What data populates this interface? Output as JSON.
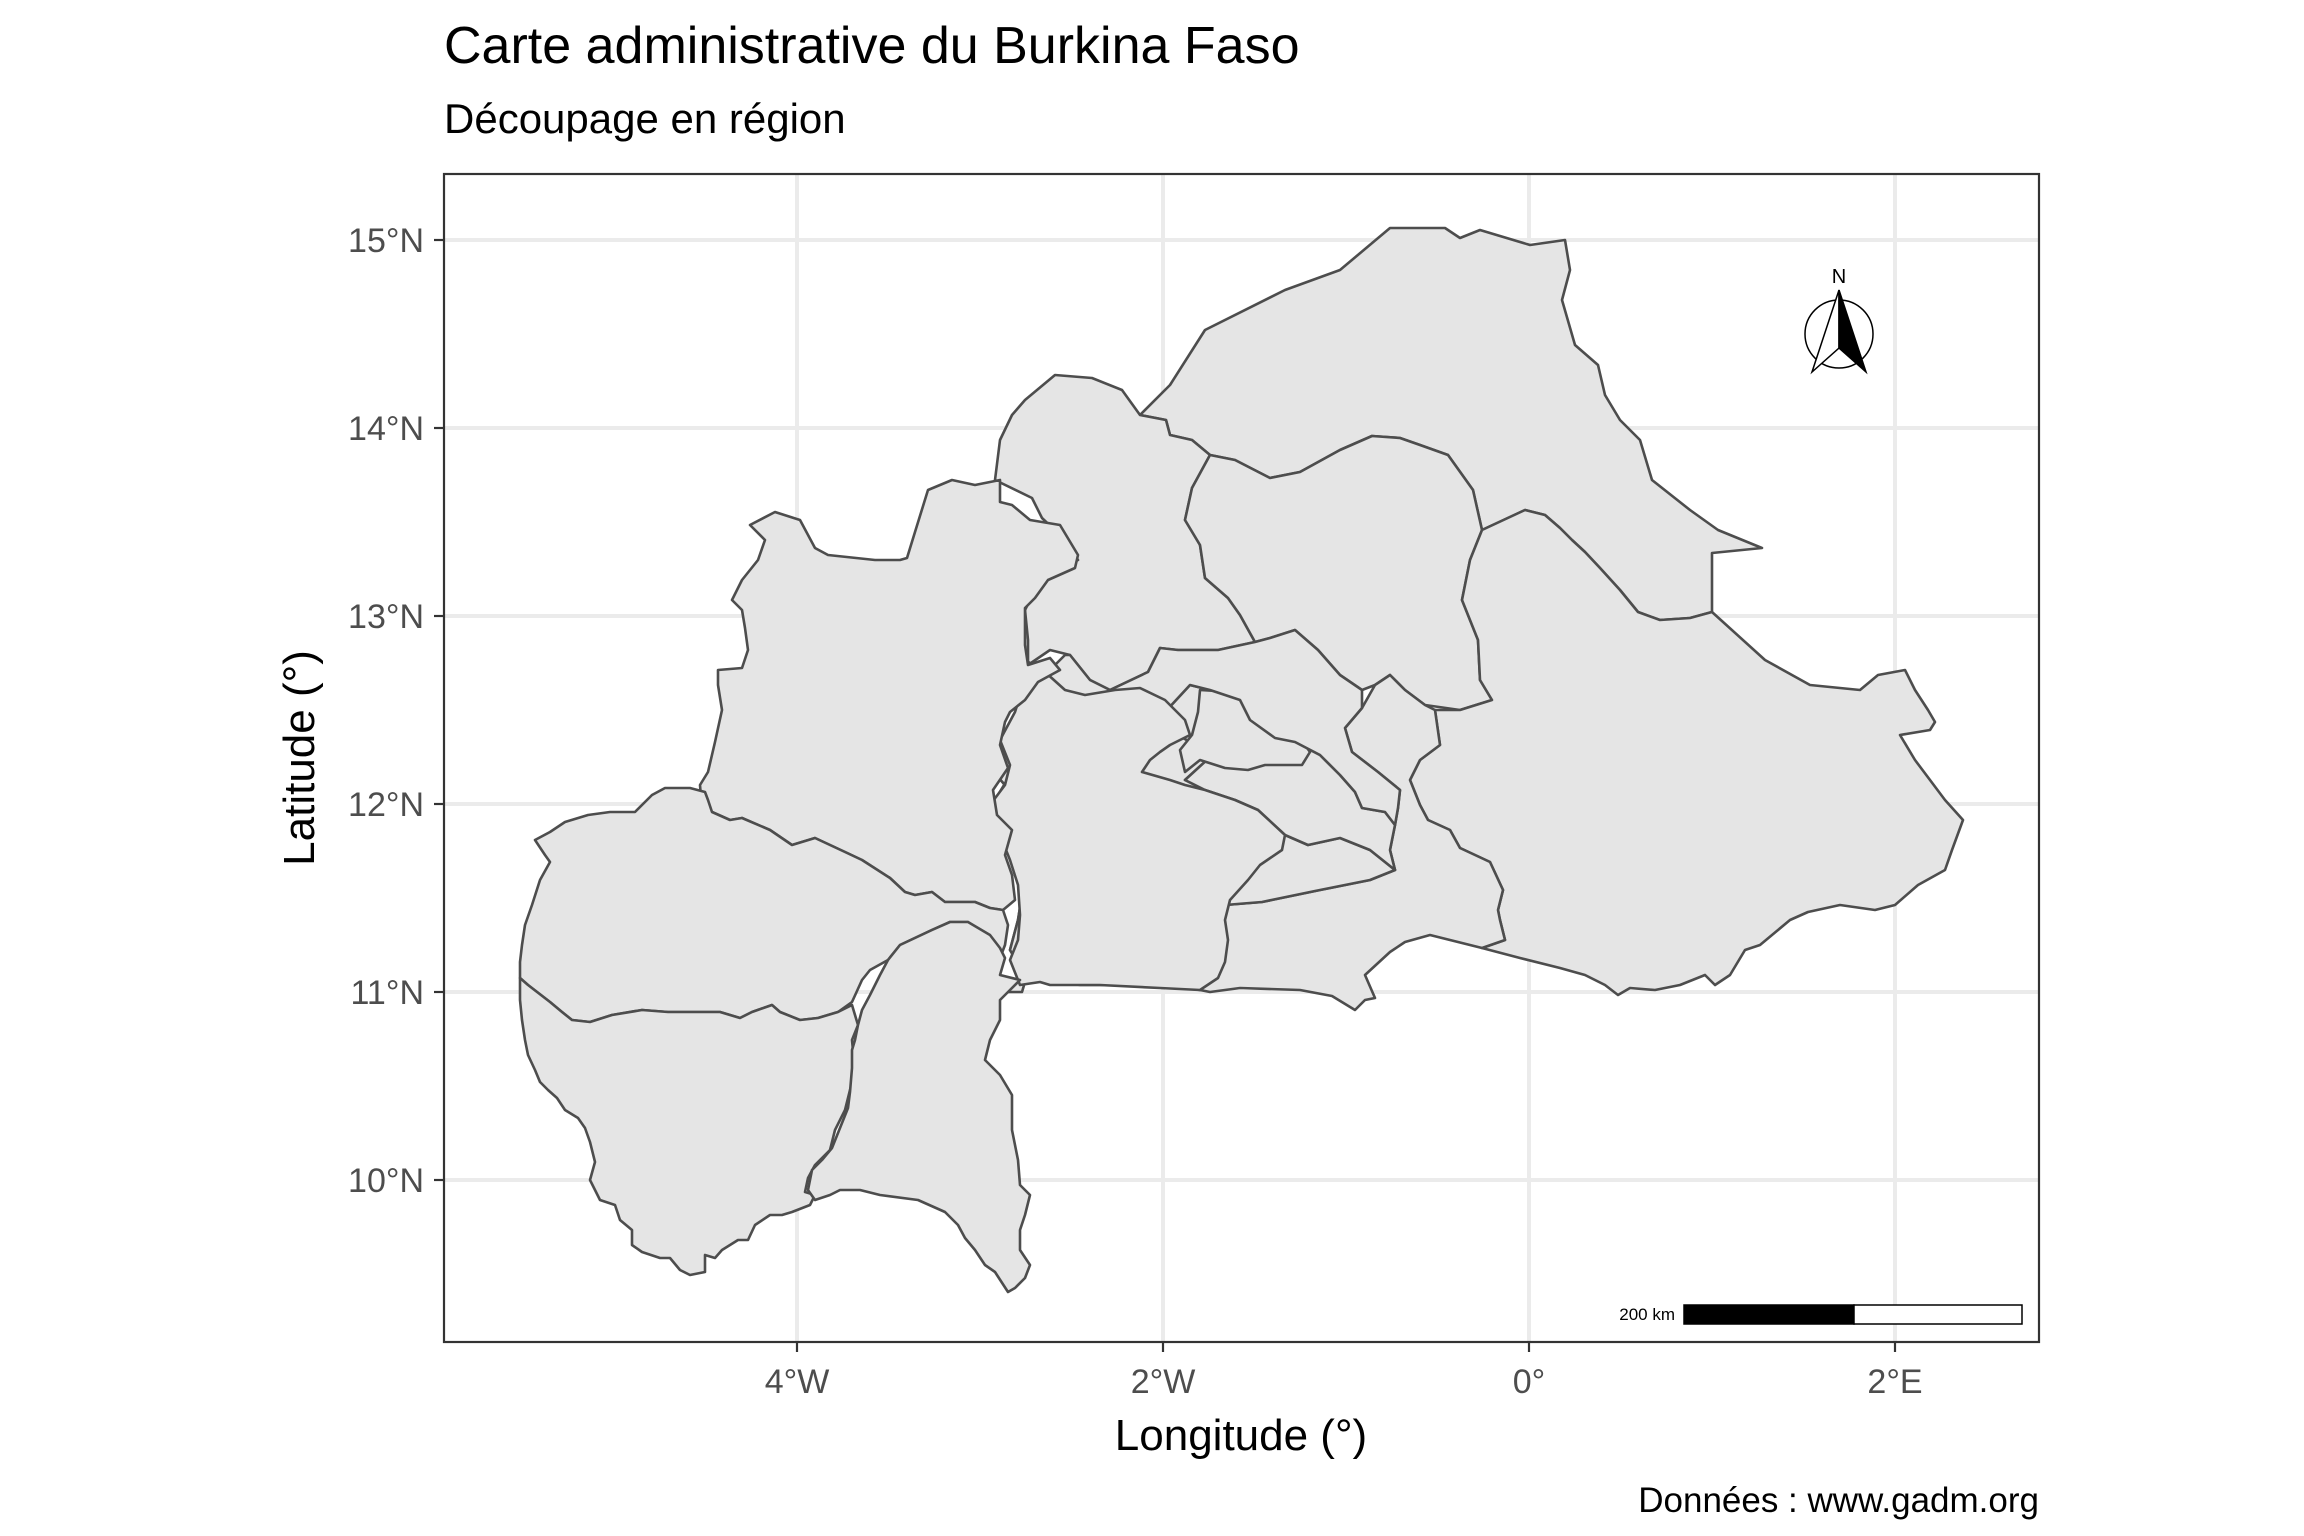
{
  "title": "Carte administrative du Burkina Faso",
  "subtitle": "Découpage en région",
  "caption": "Données : www.gadm.org",
  "x_axis": {
    "title": "Longitude (°)",
    "ticks": [
      {
        "value": -4,
        "label": "4°W"
      },
      {
        "value": -2,
        "label": "2°W"
      },
      {
        "value": 0,
        "label": "0°"
      },
      {
        "value": 2,
        "label": "2°E"
      }
    ],
    "range": [
      -5.9,
      2.8
    ]
  },
  "y_axis": {
    "title": "Latitude (°)",
    "ticks": [
      {
        "value": 10,
        "label": "10°N"
      },
      {
        "value": 11,
        "label": "11°N"
      },
      {
        "value": 12,
        "label": "12°N"
      },
      {
        "value": 13,
        "label": "13°N"
      },
      {
        "value": 14,
        "label": "14°N"
      },
      {
        "value": 15,
        "label": "15°N"
      }
    ],
    "range": [
      9.1,
      15.35
    ]
  },
  "north_arrow": {
    "label": "N"
  },
  "scale_bar": {
    "label": "200 km"
  },
  "colors": {
    "region_fill": "#e5e5e5",
    "region_border": "#4d4d4d",
    "grid": "#ebebeb",
    "panel_border": "#333333",
    "tick_label": "#4d4d4d"
  },
  "map": {
    "country": "Burkina Faso",
    "region_count": 13,
    "grid": true
  }
}
